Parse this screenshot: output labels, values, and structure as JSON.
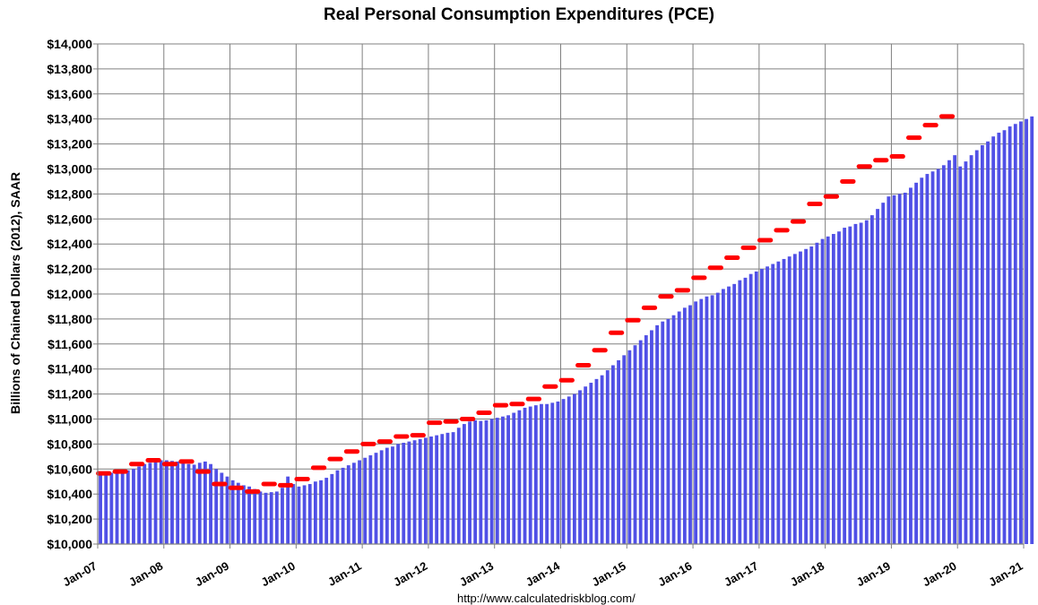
{
  "chart_data": {
    "type": "bar",
    "title": "Real Personal Consumption Expenditures (PCE)",
    "ylabel": "Billions of Chained Dollars (2012), SAAR",
    "xlabel": "",
    "source": "http://www.calculatedriskblog.com/",
    "ylim": [
      10000,
      14000
    ],
    "xlim": [
      "2007-01",
      "2021-01"
    ],
    "grid": true,
    "y_ticks": [
      "$10,000",
      "$10,200",
      "$10,400",
      "$10,600",
      "$10,800",
      "$11,000",
      "$11,200",
      "$11,400",
      "$11,600",
      "$11,800",
      "$12,000",
      "$12,200",
      "$12,400",
      "$12,600",
      "$12,800",
      "$13,000",
      "$13,200",
      "$13,400",
      "$13,600",
      "$13,800",
      "$14,000"
    ],
    "x_ticks": [
      "Jan-07",
      "Jan-08",
      "Jan-09",
      "Jan-10",
      "Jan-11",
      "Jan-12",
      "Jan-13",
      "Jan-14",
      "Jan-15",
      "Jan-16",
      "Jan-17",
      "Jan-18",
      "Jan-19",
      "Jan-20",
      "Jan-21"
    ],
    "colors": {
      "bars": "#5050e6",
      "quarterly": "#ff0000",
      "grid": "#808080"
    },
    "series": [
      {
        "type": "bar",
        "frequency": "monthly",
        "start": "2007-01",
        "values": [
          10550,
          10560,
          10570,
          10575,
          10580,
          10590,
          10600,
          10620,
          10640,
          10650,
          10660,
          10670,
          10670,
          10665,
          10660,
          10645,
          10640,
          10635,
          10650,
          10660,
          10640,
          10600,
          10570,
          10540,
          10510,
          10490,
          10470,
          10460,
          10440,
          10420,
          10410,
          10415,
          10420,
          10450,
          10540,
          10480,
          10460,
          10470,
          10480,
          10500,
          10510,
          10530,
          10560,
          10590,
          10610,
          10630,
          10650,
          10670,
          10690,
          10710,
          10730,
          10750,
          10770,
          10780,
          10800,
          10810,
          10820,
          10830,
          10840,
          10850,
          10860,
          10870,
          10880,
          10890,
          10895,
          10930,
          10960,
          10980,
          10990,
          10985,
          10990,
          11000,
          11010,
          11020,
          11030,
          11050,
          11070,
          11090,
          11100,
          11110,
          11120,
          11120,
          11130,
          11140,
          11160,
          11180,
          11200,
          11230,
          11260,
          11290,
          11320,
          11350,
          11390,
          11430,
          11470,
          11510,
          11550,
          11590,
          11630,
          11670,
          11710,
          11750,
          11780,
          11800,
          11830,
          11860,
          11890,
          11910,
          11940,
          11960,
          11980,
          11990,
          12010,
          12040,
          12060,
          12080,
          12110,
          12130,
          12160,
          12180,
          12200,
          12220,
          12240,
          12260,
          12280,
          12300,
          12320,
          12340,
          12360,
          12380,
          12410,
          12440,
          12460,
          12480,
          12500,
          12530,
          12540,
          12560,
          12570,
          12590,
          12630,
          12680,
          12730,
          12780,
          12790,
          12800,
          12810,
          12850,
          12890,
          12930,
          12960,
          12980,
          13000,
          13030,
          13070,
          13110,
          13020,
          13060,
          13110,
          13150,
          13190,
          13220,
          13260,
          13290,
          13310,
          13340,
          13360,
          13380,
          13400,
          13420
        ]
      },
      {
        "type": "quarterly-marker",
        "frequency": "quarterly",
        "start": "2007-01",
        "values": [
          10565,
          10580,
          10640,
          10670,
          10640,
          10660,
          10580,
          10480,
          10450,
          10420,
          10480,
          10470,
          10520,
          10610,
          10680,
          10740,
          10800,
          10820,
          10860,
          10870,
          10970,
          10980,
          11000,
          11050,
          11110,
          11120,
          11160,
          11260,
          11310,
          11430,
          11550,
          11690,
          11790,
          11890,
          11980,
          12030,
          12130,
          12210,
          12290,
          12370,
          12430,
          12510,
          12580,
          12720,
          12780,
          12900,
          13020,
          13070,
          13100,
          13250,
          13350,
          13420
        ]
      }
    ]
  }
}
